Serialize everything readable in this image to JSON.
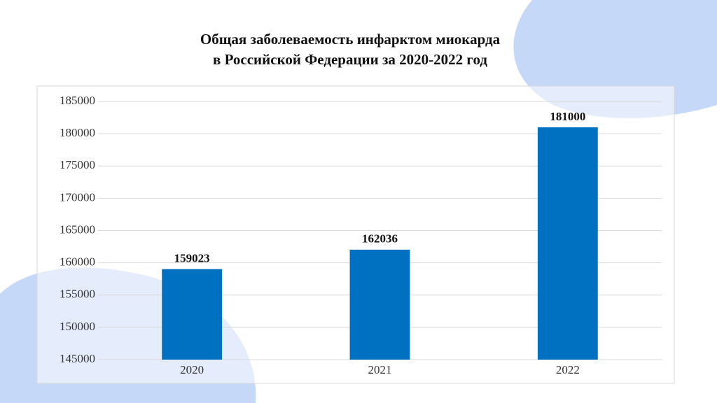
{
  "chart_data": {
    "type": "bar",
    "title": [
      "Общая заболеваемость инфарктом миокарда",
      "в Российской Федерации за 2020-2022 год"
    ],
    "categories": [
      "2020",
      "2021",
      "2022"
    ],
    "values": [
      159023,
      162036,
      181000
    ],
    "color": "#0070c0",
    "ylim": [
      145000,
      185000
    ],
    "yticks": [
      145000,
      150000,
      155000,
      160000,
      165000,
      170000,
      175000,
      180000,
      185000
    ],
    "grid": true
  }
}
